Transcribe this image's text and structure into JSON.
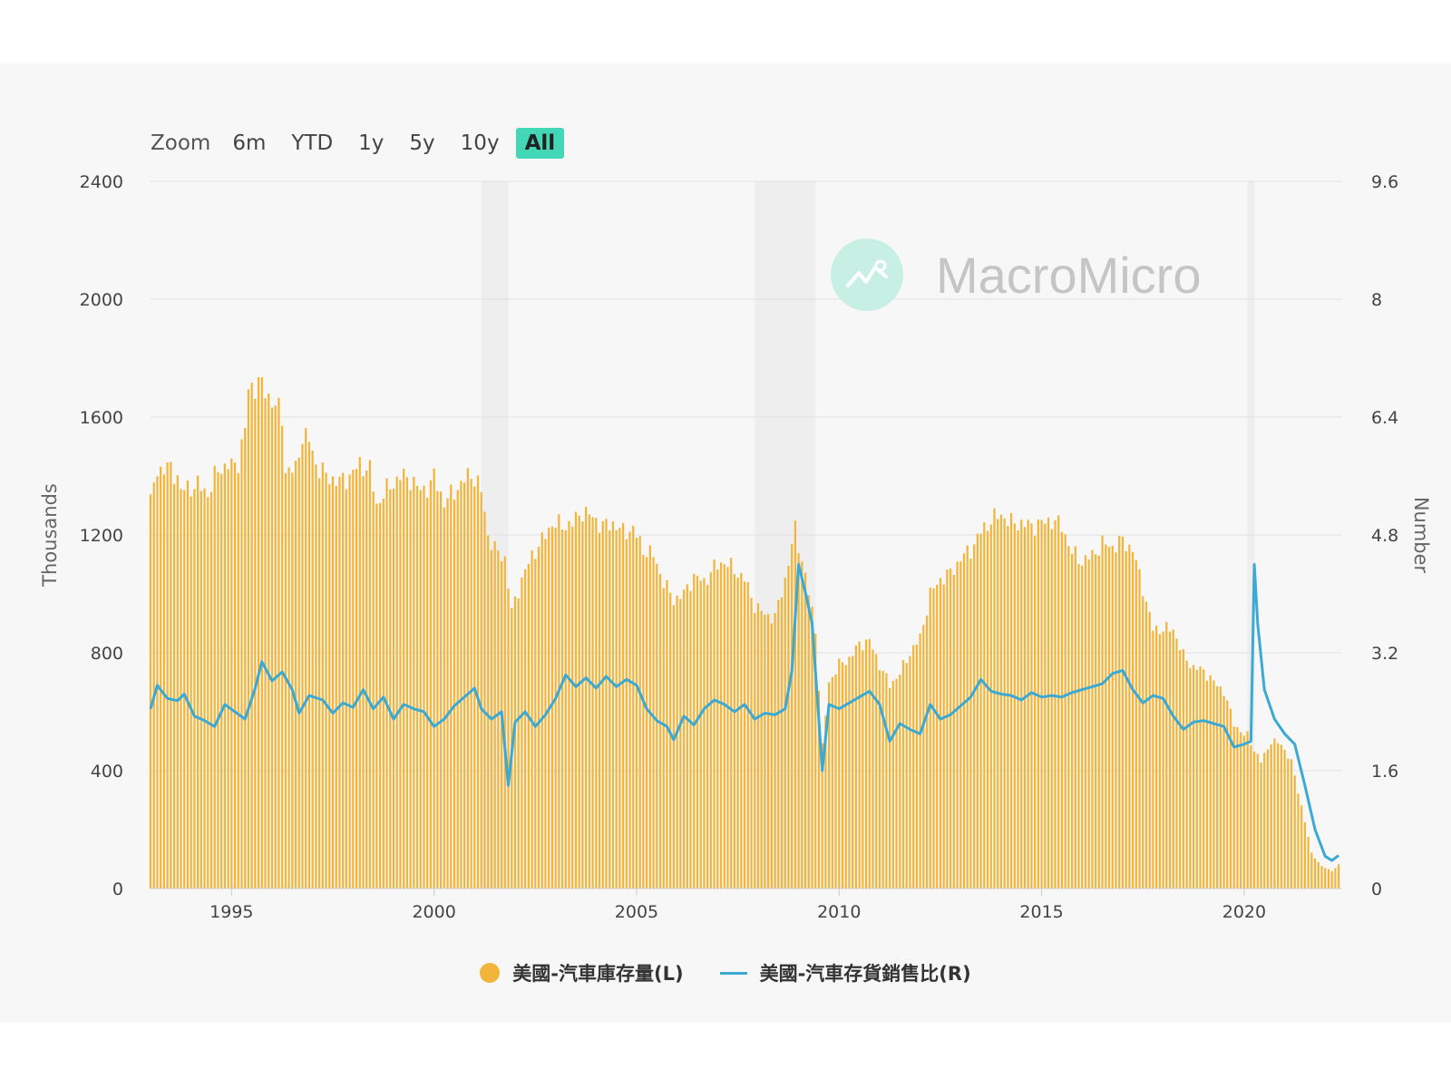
{
  "toolbar": {
    "zoom_label": "Zoom",
    "buttons": [
      "6m",
      "YTD",
      "1y",
      "5y",
      "10y",
      "All"
    ],
    "active": "All"
  },
  "watermark": {
    "text": "MacroMicro"
  },
  "colors": {
    "bars": "#f2b53a",
    "line": "#3aa9d4",
    "recession": "#eeeeee",
    "grid": "#e0e0e0",
    "active_button": "#43d6b7"
  },
  "chart_data": {
    "type": "bar+line",
    "title": "",
    "x_range": [
      "1993-01",
      "2022-05"
    ],
    "x_ticks": [
      "1995",
      "2000",
      "2005",
      "2010",
      "2015",
      "2020"
    ],
    "y_left": {
      "label": "Thousands",
      "range": [
        0,
        2400
      ],
      "ticks": [
        "0",
        "400",
        "800",
        "1200",
        "1600",
        "2000",
        "2400"
      ]
    },
    "y_right": {
      "label": "Number",
      "range": [
        0,
        9.6
      ],
      "ticks": [
        "0",
        "1.6",
        "3.2",
        "4.8",
        "6.4",
        "8",
        "9.6"
      ]
    },
    "grid": true,
    "legend_position": "bottom",
    "recessions": [
      [
        "2001-03",
        "2001-11"
      ],
      [
        "2007-12",
        "2009-06"
      ],
      [
        "2020-02",
        "2020-04"
      ]
    ],
    "series": [
      {
        "name": "美國-汽車庫存量(L)",
        "type": "bar",
        "axis": "left",
        "points": [
          [
            "1993-01",
            1310
          ],
          [
            "1993-03",
            1420
          ],
          [
            "1993-06",
            1430
          ],
          [
            "1993-09",
            1400
          ],
          [
            "1993-10",
            1350
          ],
          [
            "1994-03",
            1370
          ],
          [
            "1994-06",
            1340
          ],
          [
            "1994-09",
            1420
          ],
          [
            "1994-12",
            1440
          ],
          [
            "1995-01",
            1430
          ],
          [
            "1995-03",
            1450
          ],
          [
            "1995-05",
            1560
          ],
          [
            "1995-06",
            1690
          ],
          [
            "1995-09",
            1720
          ],
          [
            "1995-12",
            1670
          ],
          [
            "1996-02",
            1640
          ],
          [
            "1996-04",
            1600
          ],
          [
            "1996-05",
            1420
          ],
          [
            "1996-08",
            1420
          ],
          [
            "1996-10",
            1540
          ],
          [
            "1996-12",
            1520
          ],
          [
            "1997-02",
            1440
          ],
          [
            "1997-05",
            1400
          ],
          [
            "1997-09",
            1380
          ],
          [
            "1997-12",
            1400
          ],
          [
            "1998-03",
            1440
          ],
          [
            "1998-06",
            1420
          ],
          [
            "1998-08",
            1300
          ],
          [
            "1998-10",
            1340
          ],
          [
            "1999-03",
            1400
          ],
          [
            "1999-06",
            1390
          ],
          [
            "1999-09",
            1350
          ],
          [
            "1999-12",
            1370
          ],
          [
            "2000-01",
            1400
          ],
          [
            "2000-04",
            1310
          ],
          [
            "2000-08",
            1360
          ],
          [
            "2000-12",
            1410
          ],
          [
            "2001-03",
            1350
          ],
          [
            "2001-05",
            1200
          ],
          [
            "2001-07",
            1150
          ],
          [
            "2001-10",
            1120
          ],
          [
            "2001-12",
            940
          ],
          [
            "2002-03",
            1050
          ],
          [
            "2002-06",
            1130
          ],
          [
            "2002-09",
            1180
          ],
          [
            "2002-12",
            1240
          ],
          [
            "2003-03",
            1230
          ],
          [
            "2003-06",
            1240
          ],
          [
            "2003-09",
            1280
          ],
          [
            "2003-12",
            1260
          ],
          [
            "2004-03",
            1230
          ],
          [
            "2004-06",
            1240
          ],
          [
            "2004-09",
            1210
          ],
          [
            "2004-12",
            1220
          ],
          [
            "2005-03",
            1150
          ],
          [
            "2005-06",
            1130
          ],
          [
            "2005-09",
            1040
          ],
          [
            "2005-12",
            980
          ],
          [
            "2006-03",
            1000
          ],
          [
            "2006-06",
            1060
          ],
          [
            "2006-09",
            1040
          ],
          [
            "2006-12",
            1090
          ],
          [
            "2007-03",
            1110
          ],
          [
            "2007-06",
            1080
          ],
          [
            "2007-09",
            1050
          ],
          [
            "2007-12",
            960
          ],
          [
            "2008-03",
            930
          ],
          [
            "2008-06",
            920
          ],
          [
            "2008-09",
            1050
          ],
          [
            "2008-12",
            1220
          ],
          [
            "2009-03",
            1060
          ],
          [
            "2009-06",
            880
          ],
          [
            "2009-08",
            480
          ],
          [
            "2009-10",
            700
          ],
          [
            "2010-01",
            760
          ],
          [
            "2010-04",
            780
          ],
          [
            "2010-07",
            830
          ],
          [
            "2010-10",
            840
          ],
          [
            "2011-01",
            760
          ],
          [
            "2011-04",
            690
          ],
          [
            "2011-07",
            730
          ],
          [
            "2011-10",
            800
          ],
          [
            "2012-01",
            850
          ],
          [
            "2012-04",
            1000
          ],
          [
            "2012-07",
            1050
          ],
          [
            "2012-10",
            1070
          ],
          [
            "2013-01",
            1120
          ],
          [
            "2013-04",
            1150
          ],
          [
            "2013-07",
            1210
          ],
          [
            "2013-10",
            1250
          ],
          [
            "2014-01",
            1270
          ],
          [
            "2014-04",
            1240
          ],
          [
            "2014-07",
            1240
          ],
          [
            "2014-10",
            1230
          ],
          [
            "2015-01",
            1240
          ],
          [
            "2015-04",
            1250
          ],
          [
            "2015-07",
            1230
          ],
          [
            "2015-10",
            1140
          ],
          [
            "2016-01",
            1110
          ],
          [
            "2016-04",
            1130
          ],
          [
            "2016-07",
            1170
          ],
          [
            "2016-10",
            1160
          ],
          [
            "2017-01",
            1180
          ],
          [
            "2017-04",
            1150
          ],
          [
            "2017-07",
            1020
          ],
          [
            "2017-10",
            880
          ],
          [
            "2018-01",
            880
          ],
          [
            "2018-04",
            880
          ],
          [
            "2018-07",
            790
          ],
          [
            "2018-10",
            750
          ],
          [
            "2019-01",
            740
          ],
          [
            "2019-04",
            700
          ],
          [
            "2019-07",
            670
          ],
          [
            "2019-10",
            560
          ],
          [
            "2020-01",
            520
          ],
          [
            "2020-02",
            520
          ],
          [
            "2020-04",
            470
          ],
          [
            "2020-06",
            430
          ],
          [
            "2020-09",
            500
          ],
          [
            "2020-12",
            490
          ],
          [
            "2021-03",
            430
          ],
          [
            "2021-06",
            280
          ],
          [
            "2021-09",
            120
          ],
          [
            "2021-12",
            75
          ],
          [
            "2022-03",
            60
          ],
          [
            "2022-05",
            80
          ]
        ]
      },
      {
        "name": "美國-汽車存貨銷售比(R)",
        "type": "line",
        "axis": "right",
        "points": [
          [
            "1993-01",
            2.44
          ],
          [
            "1993-03",
            2.76
          ],
          [
            "1993-06",
            2.58
          ],
          [
            "1993-09",
            2.55
          ],
          [
            "1993-11",
            2.64
          ],
          [
            "1994-02",
            2.34
          ],
          [
            "1994-05",
            2.28
          ],
          [
            "1994-08",
            2.2
          ],
          [
            "1994-11",
            2.5
          ],
          [
            "1995-02",
            2.4
          ],
          [
            "1995-05",
            2.3
          ],
          [
            "1995-08",
            2.72
          ],
          [
            "1995-10",
            3.08
          ],
          [
            "1996-01",
            2.82
          ],
          [
            "1996-04",
            2.94
          ],
          [
            "1996-07",
            2.7
          ],
          [
            "1996-09",
            2.38
          ],
          [
            "1996-12",
            2.62
          ],
          [
            "1997-04",
            2.56
          ],
          [
            "1997-07",
            2.38
          ],
          [
            "1997-10",
            2.52
          ],
          [
            "1998-01",
            2.46
          ],
          [
            "1998-04",
            2.7
          ],
          [
            "1998-07",
            2.44
          ],
          [
            "1998-10",
            2.6
          ],
          [
            "1999-01",
            2.3
          ],
          [
            "1999-04",
            2.5
          ],
          [
            "1999-07",
            2.44
          ],
          [
            "1999-10",
            2.4
          ],
          [
            "2000-01",
            2.2
          ],
          [
            "2000-04",
            2.3
          ],
          [
            "2000-07",
            2.48
          ],
          [
            "2000-10",
            2.6
          ],
          [
            "2001-01",
            2.72
          ],
          [
            "2001-03",
            2.44
          ],
          [
            "2001-06",
            2.3
          ],
          [
            "2001-09",
            2.4
          ],
          [
            "2001-11",
            1.4
          ],
          [
            "2002-01",
            2.26
          ],
          [
            "2002-04",
            2.4
          ],
          [
            "2002-07",
            2.2
          ],
          [
            "2002-10",
            2.36
          ],
          [
            "2003-01",
            2.58
          ],
          [
            "2003-04",
            2.9
          ],
          [
            "2003-07",
            2.74
          ],
          [
            "2003-10",
            2.86
          ],
          [
            "2004-01",
            2.72
          ],
          [
            "2004-04",
            2.88
          ],
          [
            "2004-07",
            2.74
          ],
          [
            "2004-10",
            2.84
          ],
          [
            "2005-01",
            2.76
          ],
          [
            "2005-04",
            2.44
          ],
          [
            "2005-07",
            2.28
          ],
          [
            "2005-10",
            2.2
          ],
          [
            "2005-12",
            2.02
          ],
          [
            "2006-03",
            2.34
          ],
          [
            "2006-06",
            2.22
          ],
          [
            "2006-09",
            2.44
          ],
          [
            "2006-12",
            2.56
          ],
          [
            "2007-03",
            2.5
          ],
          [
            "2007-06",
            2.4
          ],
          [
            "2007-09",
            2.5
          ],
          [
            "2007-12",
            2.3
          ],
          [
            "2008-03",
            2.38
          ],
          [
            "2008-06",
            2.36
          ],
          [
            "2008-09",
            2.44
          ],
          [
            "2008-11",
            2.95
          ],
          [
            "2009-01",
            4.4
          ],
          [
            "2009-03",
            4.02
          ],
          [
            "2009-05",
            3.6
          ],
          [
            "2009-07",
            2.3
          ],
          [
            "2009-08",
            1.6
          ],
          [
            "2009-10",
            2.5
          ],
          [
            "2010-01",
            2.44
          ],
          [
            "2010-04",
            2.52
          ],
          [
            "2010-07",
            2.6
          ],
          [
            "2010-10",
            2.68
          ],
          [
            "2011-01",
            2.5
          ],
          [
            "2011-04",
            2.0
          ],
          [
            "2011-07",
            2.24
          ],
          [
            "2011-10",
            2.16
          ],
          [
            "2012-01",
            2.1
          ],
          [
            "2012-04",
            2.5
          ],
          [
            "2012-07",
            2.3
          ],
          [
            "2012-10",
            2.36
          ],
          [
            "2013-01",
            2.48
          ],
          [
            "2013-04",
            2.6
          ],
          [
            "2013-07",
            2.84
          ],
          [
            "2013-10",
            2.68
          ],
          [
            "2014-01",
            2.64
          ],
          [
            "2014-04",
            2.62
          ],
          [
            "2014-07",
            2.56
          ],
          [
            "2014-10",
            2.66
          ],
          [
            "2015-01",
            2.6
          ],
          [
            "2015-04",
            2.62
          ],
          [
            "2015-07",
            2.6
          ],
          [
            "2015-10",
            2.66
          ],
          [
            "2016-01",
            2.7
          ],
          [
            "2016-04",
            2.74
          ],
          [
            "2016-07",
            2.78
          ],
          [
            "2016-10",
            2.92
          ],
          [
            "2017-01",
            2.96
          ],
          [
            "2017-04",
            2.7
          ],
          [
            "2017-07",
            2.52
          ],
          [
            "2017-10",
            2.62
          ],
          [
            "2018-01",
            2.58
          ],
          [
            "2018-04",
            2.34
          ],
          [
            "2018-07",
            2.16
          ],
          [
            "2018-10",
            2.26
          ],
          [
            "2019-01",
            2.28
          ],
          [
            "2019-04",
            2.24
          ],
          [
            "2019-07",
            2.2
          ],
          [
            "2019-10",
            1.92
          ],
          [
            "2020-01",
            1.96
          ],
          [
            "2020-03",
            2.0
          ],
          [
            "2020-04",
            4.4
          ],
          [
            "2020-05",
            3.6
          ],
          [
            "2020-07",
            2.7
          ],
          [
            "2020-10",
            2.3
          ],
          [
            "2021-01",
            2.1
          ],
          [
            "2021-04",
            1.96
          ],
          [
            "2021-07",
            1.4
          ],
          [
            "2021-10",
            0.8
          ],
          [
            "2022-01",
            0.44
          ],
          [
            "2022-03",
            0.38
          ],
          [
            "2022-05",
            0.45
          ]
        ]
      }
    ]
  }
}
